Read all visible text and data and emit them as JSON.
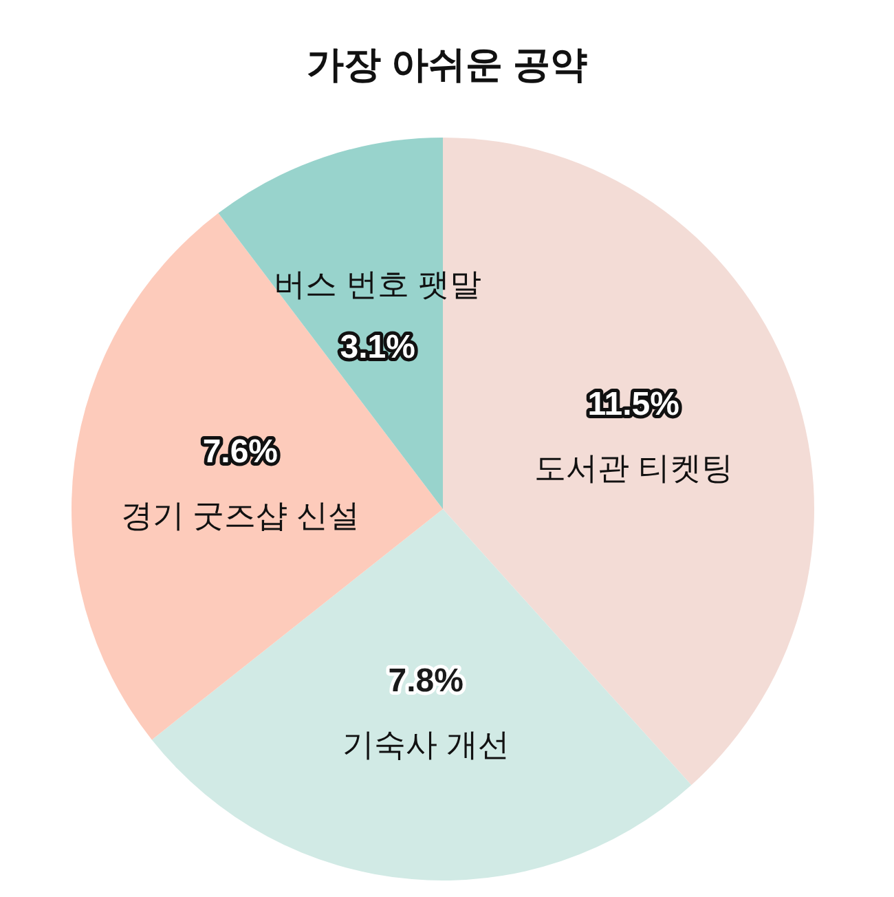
{
  "chart_data": {
    "type": "pie",
    "title": "가장 아쉬운 공약",
    "categories": [
      "도서관 티켓팅",
      "기숙사 개선",
      "경기 굿즈샵 신설",
      "버스 번호 팻말"
    ],
    "values": [
      11.5,
      7.8,
      7.6,
      3.1
    ],
    "colors": [
      "#f3dcd6",
      "#d1eae5",
      "#fdcbbb",
      "#98d3cc"
    ],
    "value_labels": [
      "11.5%",
      "7.8%",
      "7.6%",
      "3.1%"
    ]
  }
}
